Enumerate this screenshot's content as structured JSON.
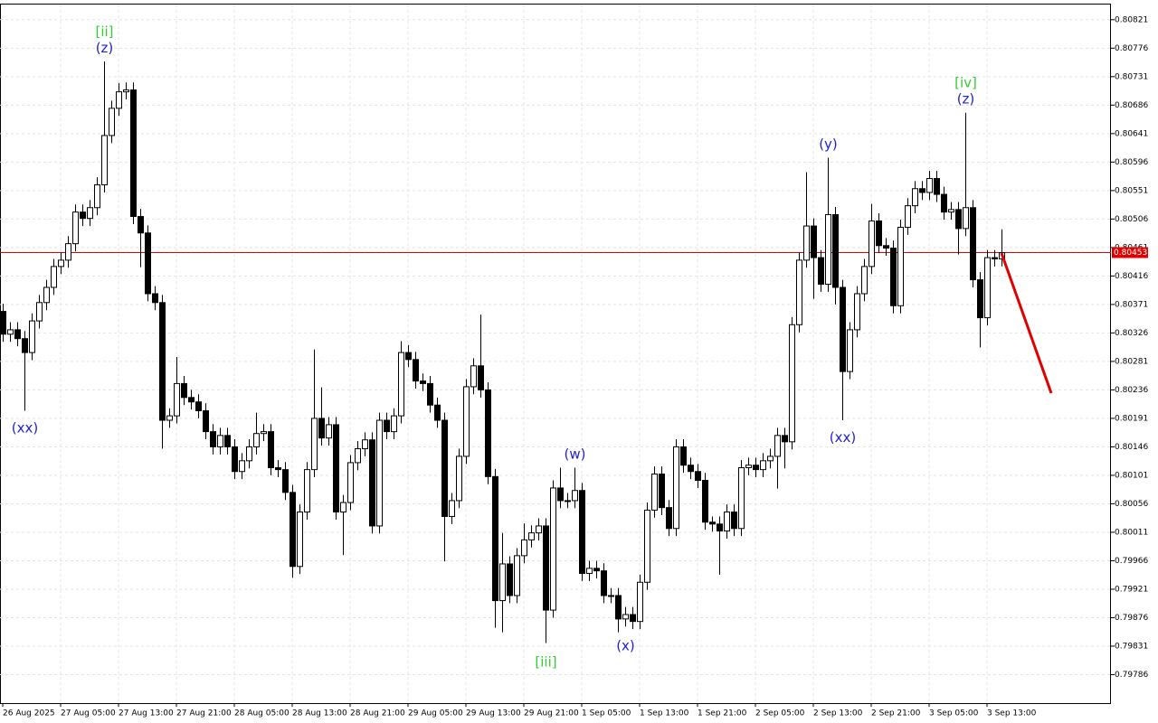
{
  "chart_data": {
    "type": "candlestick",
    "categories": [
      "26 Aug 2025",
      null,
      null,
      null,
      null,
      null,
      null,
      null,
      "27 Aug 05:00",
      null,
      null,
      null,
      null,
      null,
      null,
      null,
      "27 Aug 13:00",
      null,
      null,
      null,
      null,
      null,
      null,
      null,
      "27 Aug 21:00",
      null,
      null,
      null,
      null,
      null,
      null,
      null,
      "28 Aug 05:00",
      null,
      null,
      null,
      null,
      null,
      null,
      null,
      "28 Aug 13:00",
      null,
      null,
      null,
      null,
      null,
      null,
      null,
      "28 Aug 21:00",
      null,
      null,
      null,
      null,
      null,
      null,
      null,
      "29 Aug 05:00",
      null,
      null,
      null,
      null,
      null,
      null,
      null,
      "29 Aug 13:00",
      null,
      null,
      null,
      null,
      null,
      null,
      null,
      "29 Aug 21:00",
      null,
      null,
      null,
      null,
      null,
      null,
      null,
      "1 Sep 05:00",
      null,
      null,
      null,
      null,
      null,
      null,
      null,
      "1 Sep 13:00",
      null,
      null,
      null,
      null,
      null,
      null,
      null,
      "1 Sep 21:00",
      null,
      null,
      null,
      null,
      null,
      null,
      null,
      "2 Sep 05:00",
      null,
      null,
      null,
      null,
      null,
      null,
      null,
      "2 Sep 13:00",
      null,
      null,
      null,
      null,
      null,
      null,
      null,
      "2 Sep 21:00",
      null,
      null,
      null,
      null,
      null,
      null,
      null,
      "3 Sep 05:00",
      null,
      null,
      null,
      null,
      null,
      null,
      null,
      "3 Sep 13:00",
      null,
      null
    ],
    "open": [
      0.8036,
      0.80324,
      0.80331,
      0.80317,
      0.80295,
      0.80345,
      0.80374,
      0.80398,
      0.80431,
      0.80441,
      0.80467,
      0.80517,
      0.80507,
      0.80524,
      0.8056,
      0.80638,
      0.80681,
      0.80707,
      0.8071,
      0.8051,
      0.80484,
      0.80388,
      0.80374,
      0.80188,
      0.80195,
      0.80246,
      0.80224,
      0.80217,
      0.80203,
      0.8017,
      0.80146,
      0.80164,
      0.80146,
      0.80107,
      0.80124,
      0.80146,
      0.80167,
      0.8017,
      0.80113,
      0.8011,
      0.80074,
      0.79957,
      0.80043,
      0.8011,
      0.80191,
      0.8016,
      0.80181,
      0.80043,
      0.80058,
      0.80121,
      0.80143,
      0.80157,
      0.80021,
      0.80188,
      0.8017,
      0.80195,
      0.80295,
      0.80284,
      0.8025,
      0.80246,
      0.80212,
      0.80188,
      0.80036,
      0.80061,
      0.80131,
      0.80241,
      0.80274,
      0.80236,
      0.80099,
      0.79903,
      0.79961,
      0.79911,
      0.79974,
      0.79999,
      0.8001,
      0.80021,
      0.79888,
      0.80081,
      0.80061,
      0.80061,
      0.80077,
      0.79946,
      0.79954,
      0.7995,
      0.79911,
      0.79911,
      0.79874,
      0.79881,
      0.7987,
      0.79932,
      0.80046,
      0.80103,
      0.8005,
      0.80017,
      0.80146,
      0.80117,
      0.80107,
      0.80093,
      0.80027,
      0.80024,
      0.80013,
      0.80043,
      0.80017,
      0.80113,
      0.80117,
      0.8011,
      0.80124,
      0.80131,
      0.80164,
      0.80154,
      0.80339,
      0.80441,
      0.80495,
      0.80445,
      0.80403,
      0.80513,
      0.80398,
      0.80265,
      0.80331,
      0.80388,
      0.80431,
      0.80503,
      0.80464,
      0.8046,
      0.80369,
      0.80493,
      0.80527,
      0.80554,
      0.80548,
      0.8057,
      0.80545,
      0.80517,
      0.80521,
      0.80491,
      0.80524,
      0.8041,
      0.8035,
      0.80445,
      0.80443
    ],
    "close": [
      0.80324,
      0.80331,
      0.80317,
      0.80295,
      0.80345,
      0.80374,
      0.80398,
      0.80431,
      0.80441,
      0.80467,
      0.80517,
      0.80507,
      0.80524,
      0.8056,
      0.80638,
      0.80681,
      0.80707,
      0.8071,
      0.8051,
      0.80484,
      0.80388,
      0.80374,
      0.80188,
      0.80195,
      0.80246,
      0.80224,
      0.80217,
      0.80203,
      0.8017,
      0.80146,
      0.80164,
      0.80146,
      0.80107,
      0.80124,
      0.80146,
      0.80167,
      0.8017,
      0.80113,
      0.8011,
      0.80074,
      0.79957,
      0.80043,
      0.8011,
      0.80191,
      0.8016,
      0.80181,
      0.80043,
      0.80058,
      0.80121,
      0.80143,
      0.80157,
      0.80021,
      0.80188,
      0.8017,
      0.80195,
      0.80295,
      0.80284,
      0.8025,
      0.80246,
      0.80212,
      0.80188,
      0.80036,
      0.80061,
      0.80131,
      0.80241,
      0.80274,
      0.80236,
      0.80099,
      0.79903,
      0.79961,
      0.79911,
      0.79974,
      0.79999,
      0.8001,
      0.80021,
      0.79888,
      0.80081,
      0.80061,
      0.80061,
      0.80077,
      0.79946,
      0.79954,
      0.7995,
      0.79911,
      0.79911,
      0.79874,
      0.79881,
      0.7987,
      0.79932,
      0.80046,
      0.80103,
      0.8005,
      0.80017,
      0.80146,
      0.80117,
      0.80107,
      0.80093,
      0.80027,
      0.80024,
      0.80013,
      0.80043,
      0.80017,
      0.80113,
      0.80117,
      0.8011,
      0.80124,
      0.80131,
      0.80164,
      0.80154,
      0.80339,
      0.80441,
      0.80495,
      0.80445,
      0.80403,
      0.80513,
      0.80398,
      0.80265,
      0.80331,
      0.80388,
      0.80431,
      0.80503,
      0.80464,
      0.8046,
      0.80369,
      0.80493,
      0.80527,
      0.80554,
      0.80548,
      0.8057,
      0.80545,
      0.80517,
      0.80521,
      0.80491,
      0.80524,
      0.8041,
      0.8035,
      0.80445,
      0.80443,
      0.80453
    ],
    "high": [
      0.80372,
      0.80343,
      0.80343,
      0.80329,
      0.80357,
      0.80386,
      0.8041,
      0.80443,
      0.80453,
      0.80479,
      0.80529,
      0.80529,
      0.80536,
      0.80572,
      0.80755,
      0.80693,
      0.80721,
      0.80722,
      0.80722,
      0.80522,
      0.80496,
      0.804,
      0.80386,
      0.80207,
      0.80288,
      0.80258,
      0.80236,
      0.80229,
      0.80215,
      0.80182,
      0.80176,
      0.80176,
      0.80158,
      0.80136,
      0.80158,
      0.802,
      0.80182,
      0.80182,
      0.80125,
      0.80122,
      0.80086,
      0.80055,
      0.80122,
      0.803,
      0.8024,
      0.80193,
      0.80193,
      0.8007,
      0.80133,
      0.80155,
      0.80169,
      0.80169,
      0.802,
      0.802,
      0.80207,
      0.80313,
      0.80307,
      0.80296,
      0.80262,
      0.80258,
      0.80224,
      0.802,
      0.80073,
      0.80143,
      0.80253,
      0.80286,
      0.80355,
      0.80248,
      0.80111,
      0.8001,
      0.79973,
      0.79986,
      0.80025,
      0.80022,
      0.80033,
      0.80033,
      0.80093,
      0.80113,
      0.80073,
      0.80113,
      0.80089,
      0.79966,
      0.79966,
      0.79962,
      0.79923,
      0.79923,
      0.79893,
      0.79893,
      0.79944,
      0.80058,
      0.80115,
      0.80115,
      0.80062,
      0.80158,
      0.80158,
      0.80129,
      0.80119,
      0.80105,
      0.80036,
      0.80036,
      0.80055,
      0.80055,
      0.80125,
      0.80129,
      0.80129,
      0.80136,
      0.80143,
      0.80176,
      0.80176,
      0.80351,
      0.80453,
      0.8058,
      0.80507,
      0.80457,
      0.80603,
      0.80525,
      0.8041,
      0.80343,
      0.804,
      0.80443,
      0.8053,
      0.80515,
      0.80476,
      0.80472,
      0.80505,
      0.80539,
      0.80566,
      0.80566,
      0.80582,
      0.80582,
      0.80557,
      0.80533,
      0.80533,
      0.80674,
      0.80536,
      0.80422,
      0.80457,
      0.80457,
      0.8049
    ],
    "low": [
      0.80312,
      0.80312,
      0.80305,
      0.80203,
      0.80283,
      0.80333,
      0.80362,
      0.80386,
      0.80419,
      0.80429,
      0.80455,
      0.80495,
      0.80495,
      0.80512,
      0.80548,
      0.80626,
      0.80669,
      0.80695,
      0.80498,
      0.8043,
      0.80376,
      0.80362,
      0.80143,
      0.80176,
      0.80183,
      0.80212,
      0.80205,
      0.80191,
      0.80158,
      0.80134,
      0.80134,
      0.80134,
      0.80095,
      0.80095,
      0.80112,
      0.80134,
      0.80155,
      0.80101,
      0.80098,
      0.80062,
      0.79939,
      0.79945,
      0.80031,
      0.80098,
      0.80148,
      0.80148,
      0.80031,
      0.79975,
      0.80046,
      0.80109,
      0.80131,
      0.80009,
      0.80009,
      0.80158,
      0.80158,
      0.80183,
      0.80272,
      0.80238,
      0.80234,
      0.802,
      0.80176,
      0.79965,
      0.80024,
      0.80049,
      0.80119,
      0.80229,
      0.80224,
      0.80087,
      0.7986,
      0.79853,
      0.79899,
      0.79899,
      0.79962,
      0.79987,
      0.79998,
      0.79836,
      0.79876,
      0.80049,
      0.80049,
      0.80049,
      0.79934,
      0.79934,
      0.79938,
      0.79899,
      0.79899,
      0.79853,
      0.79862,
      0.79858,
      0.79858,
      0.7992,
      0.80034,
      0.80038,
      0.80005,
      0.80005,
      0.80105,
      0.80095,
      0.80081,
      0.80015,
      0.80012,
      0.79944,
      0.80001,
      0.80005,
      0.80005,
      0.80101,
      0.80098,
      0.80098,
      0.80112,
      0.8008,
      0.80112,
      0.80142,
      0.80327,
      0.80429,
      0.8038,
      0.80391,
      0.80391,
      0.80371,
      0.80188,
      0.80253,
      0.80319,
      0.80376,
      0.80419,
      0.80452,
      0.80448,
      0.80357,
      0.80357,
      0.80481,
      0.80515,
      0.80536,
      0.80536,
      0.80533,
      0.80505,
      0.80505,
      0.8045,
      0.80479,
      0.80398,
      0.80303,
      0.80338,
      0.80431,
      0.80431
    ],
    "up_color": "#ffffff",
    "down_color": "#000000",
    "ylim": [
      0.79741,
      0.80845
    ],
    "yticks": [
      0.80821,
      0.80776,
      0.80731,
      0.80686,
      0.80641,
      0.80596,
      0.80551,
      0.80506,
      0.80461,
      0.80416,
      0.80371,
      0.80326,
      0.80281,
      0.80236,
      0.80191,
      0.80146,
      0.80101,
      0.80056,
      0.80011,
      0.79966,
      0.79921,
      0.79876,
      0.79831,
      0.79786
    ],
    "grid": true,
    "current_price": {
      "value": 0.80453,
      "label": "0.80453",
      "color": "#e00000"
    },
    "annotations": [
      {
        "text": "[ii]",
        "color": "#32cd32"
      },
      {
        "text": "(z)",
        "color": "#2222cc"
      },
      {
        "text": "(xx)",
        "color": "#2222cc"
      },
      {
        "text": "[iii]",
        "color": "#32cd32"
      },
      {
        "text": "(w)",
        "color": "#2222cc"
      },
      {
        "text": "(x)",
        "color": "#2222cc"
      },
      {
        "text": "(y)",
        "color": "#2222cc"
      },
      {
        "text": "(xx)",
        "color": "#2222cc"
      },
      {
        "text": "[iv]",
        "color": "#32cd32"
      },
      {
        "text": "(z)",
        "color": "#2222cc"
      }
    ]
  }
}
